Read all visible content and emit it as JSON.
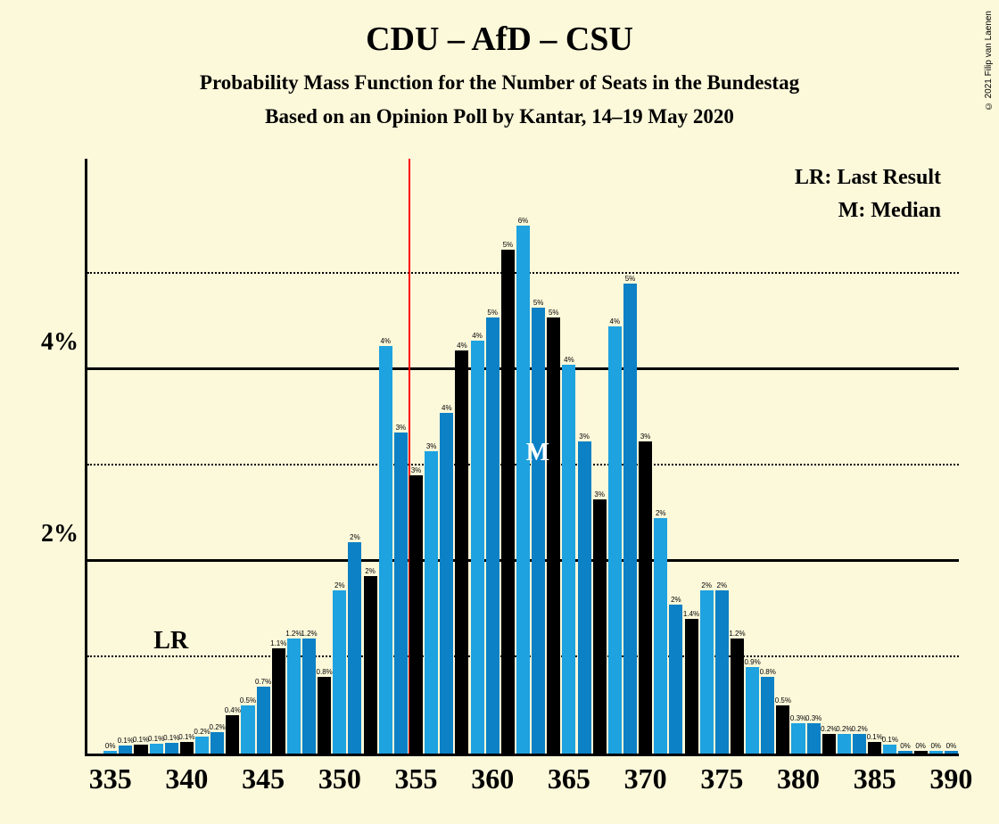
{
  "copyright": "© 2021 Filip van Laenen",
  "title": "CDU – AfD – CSU",
  "subtitle1": "Probability Mass Function for the Number of Seats in the Bundestag",
  "subtitle2": "Based on an Opinion Poll by Kantar, 14–19 May 2020",
  "legend": {
    "lr": "LR: Last Result",
    "m": "M: Median"
  },
  "overlay_lr": "LR",
  "overlay_m": "M",
  "chart": {
    "background": "#fcf8da",
    "colors": [
      "#1ea2e0",
      "#0c81c6",
      "#000000"
    ],
    "vline_color": "#ff0000",
    "vline_x": 354.5,
    "x_min": 333.5,
    "x_max": 390.5,
    "x_ticks": [
      335,
      340,
      345,
      350,
      355,
      360,
      365,
      370,
      375,
      380,
      385,
      390
    ],
    "y_max": 6.2,
    "y_gridlines": [
      1,
      2,
      3,
      4,
      5
    ],
    "y_ticks": [
      2,
      4
    ],
    "bar_gap": 0.12,
    "data": [
      {
        "x": 335,
        "v": 0.03,
        "l": "0%"
      },
      {
        "x": 336,
        "v": 0.08,
        "l": "0.1%"
      },
      {
        "x": 337,
        "v": 0.09,
        "l": "0.1%"
      },
      {
        "x": 338,
        "v": 0.1,
        "l": "0.1%"
      },
      {
        "x": 339,
        "v": 0.11,
        "l": "0.1%"
      },
      {
        "x": 340,
        "v": 0.12,
        "l": "0.1%"
      },
      {
        "x": 341,
        "v": 0.18,
        "l": "0.2%"
      },
      {
        "x": 342,
        "v": 0.22,
        "l": "0.2%"
      },
      {
        "x": 343,
        "v": 0.4,
        "l": "0.4%"
      },
      {
        "x": 344,
        "v": 0.5,
        "l": "0.5%"
      },
      {
        "x": 345,
        "v": 0.7,
        "l": "0.7%"
      },
      {
        "x": 346,
        "v": 1.1,
        "l": "1.1%"
      },
      {
        "x": 347,
        "v": 1.2,
        "l": "1.2%"
      },
      {
        "x": 348,
        "v": 1.2,
        "l": "1.2%"
      },
      {
        "x": 349,
        "v": 0.8,
        "l": "0.8%"
      },
      {
        "x": 350,
        "v": 1.7,
        "l": "2%"
      },
      {
        "x": 351,
        "v": 2.2,
        "l": "2%"
      },
      {
        "x": 352,
        "v": 1.85,
        "l": "2%"
      },
      {
        "x": 353,
        "v": 4.25,
        "l": "4%"
      },
      {
        "x": 354,
        "v": 3.35,
        "l": "3%"
      },
      {
        "x": 355,
        "v": 2.9,
        "l": "3%"
      },
      {
        "x": 356,
        "v": 3.15,
        "l": "3%"
      },
      {
        "x": 357,
        "v": 3.55,
        "l": "4%"
      },
      {
        "x": 358,
        "v": 4.2,
        "l": "4%"
      },
      {
        "x": 359,
        "v": 4.3,
        "l": "4%"
      },
      {
        "x": 360,
        "v": 4.55,
        "l": "5%"
      },
      {
        "x": 361,
        "v": 5.25,
        "l": "5%"
      },
      {
        "x": 362,
        "v": 5.5,
        "l": "6%"
      },
      {
        "x": 363,
        "v": 4.65,
        "l": "5%"
      },
      {
        "x": 364,
        "v": 4.55,
        "l": "5%"
      },
      {
        "x": 365,
        "v": 4.05,
        "l": "4%"
      },
      {
        "x": 366,
        "v": 3.25,
        "l": "3%"
      },
      {
        "x": 367,
        "v": 2.65,
        "l": "3%"
      },
      {
        "x": 368,
        "v": 4.45,
        "l": "4%"
      },
      {
        "x": 369,
        "v": 4.9,
        "l": "5%"
      },
      {
        "x": 370,
        "v": 3.25,
        "l": "3%"
      },
      {
        "x": 371,
        "v": 2.45,
        "l": "2%"
      },
      {
        "x": 372,
        "v": 1.55,
        "l": "2%"
      },
      {
        "x": 373,
        "v": 1.4,
        "l": "1.4%"
      },
      {
        "x": 374,
        "v": 1.7,
        "l": "2%"
      },
      {
        "x": 375,
        "v": 1.7,
        "l": "2%"
      },
      {
        "x": 376,
        "v": 1.2,
        "l": "1.2%"
      },
      {
        "x": 377,
        "v": 0.9,
        "l": "0.9%"
      },
      {
        "x": 378,
        "v": 0.8,
        "l": "0.8%"
      },
      {
        "x": 379,
        "v": 0.5,
        "l": "0.5%"
      },
      {
        "x": 380,
        "v": 0.32,
        "l": "0.3%"
      },
      {
        "x": 381,
        "v": 0.32,
        "l": "0.3%"
      },
      {
        "x": 382,
        "v": 0.2,
        "l": "0.2%"
      },
      {
        "x": 383,
        "v": 0.2,
        "l": "0.2%"
      },
      {
        "x": 384,
        "v": 0.2,
        "l": "0.2%"
      },
      {
        "x": 385,
        "v": 0.12,
        "l": "0.1%"
      },
      {
        "x": 386,
        "v": 0.09,
        "l": "0.1%"
      },
      {
        "x": 387,
        "v": 0.03,
        "l": "0%"
      },
      {
        "x": 388,
        "v": 0.03,
        "l": "0%"
      },
      {
        "x": 389,
        "v": 0.03,
        "l": "0%"
      },
      {
        "x": 390,
        "v": 0.03,
        "l": "0%"
      }
    ]
  }
}
